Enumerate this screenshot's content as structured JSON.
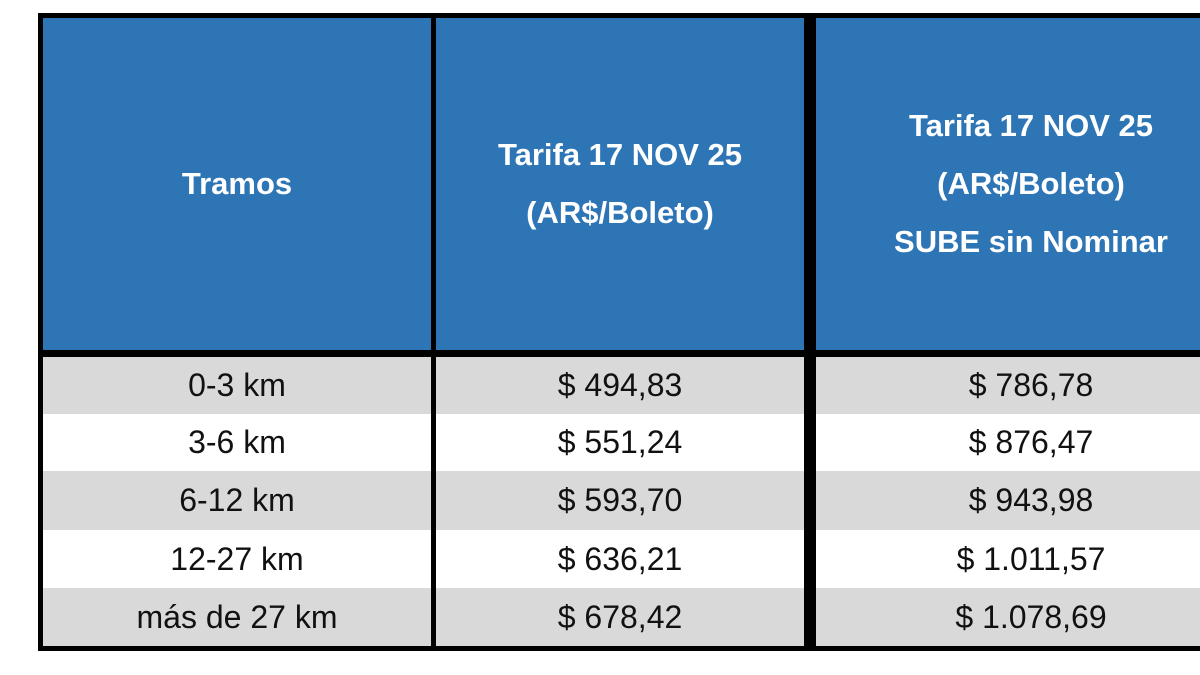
{
  "table": {
    "headers": [
      [
        "Tramos"
      ],
      [
        "Tarifa 17 NOV 25",
        "(AR$/Boleto)"
      ],
      [
        "Tarifa 17 NOV 25",
        "(AR$/Boleto)",
        "SUBE sin Nominar"
      ]
    ],
    "rows": [
      [
        "0-3 km",
        "$ 494,83",
        "$ 786,78"
      ],
      [
        "3-6 km",
        "$ 551,24",
        "$ 876,47"
      ],
      [
        "6-12 km",
        "$ 593,70",
        "$ 943,98"
      ],
      [
        "12-27 km",
        "$ 636,21",
        "$ 1.011,57"
      ],
      [
        "más de 27 km",
        "$ 678,42",
        "$ 1.078,69"
      ]
    ],
    "colors": {
      "header_bg": "#2e75b6",
      "stripe": "#d9d9d9",
      "border": "#000000"
    }
  }
}
